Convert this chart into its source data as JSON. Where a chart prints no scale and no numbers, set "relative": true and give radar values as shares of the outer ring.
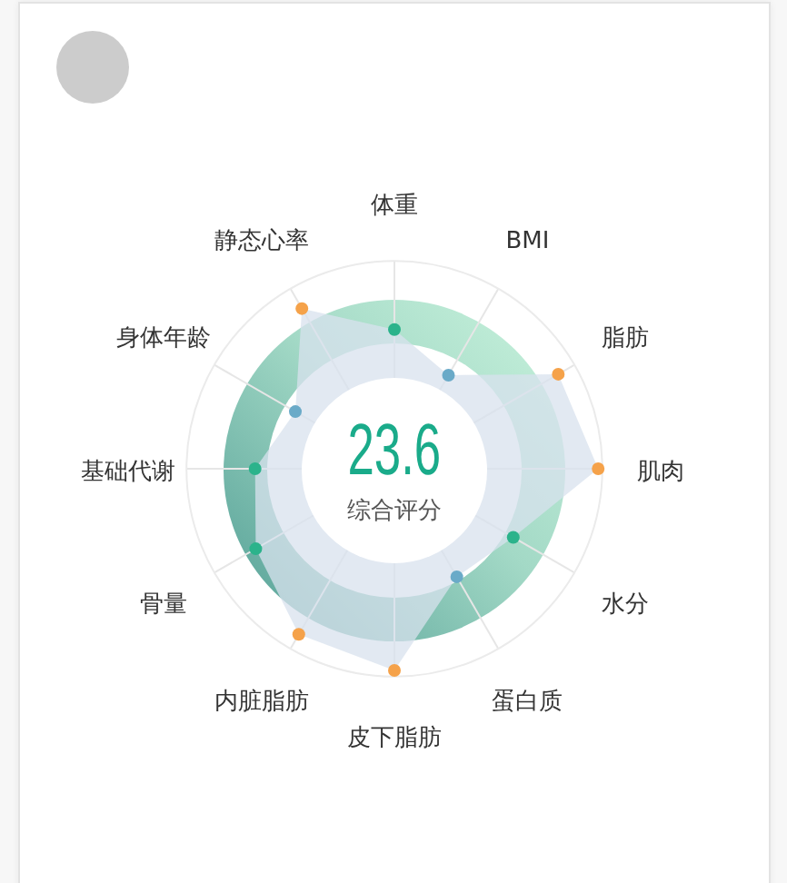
{
  "chart_data": {
    "type": "radar",
    "categories": [
      "体重",
      "BMI",
      "脂肪",
      "肌肉",
      "水分",
      "蛋白质",
      "皮下脂肪",
      "内脏脂肪",
      "骨量",
      "基础代谢",
      "身体年龄",
      "静态心率"
    ],
    "relative": true,
    "series": [
      {
        "color": "#d8e2ed",
        "colors": [
          "#2bb38b",
          "#6aaac8",
          "#f5a24a",
          "#f5a24a",
          "#2bb38b",
          "#6aaac8",
          "#f5a24a",
          "#f5a24a",
          "#2bb38b",
          "#2bb38b",
          "#6aaac8",
          "#f5a24a"
        ],
        "values": [
          0.67,
          0.52,
          0.91,
          0.98,
          0.66,
          0.6,
          0.97,
          0.92,
          0.77,
          0.67,
          0.55,
          0.89
        ]
      }
    ],
    "grid": true,
    "marker": "circle",
    "annotations": [
      "23.6",
      "综合评分"
    ]
  }
}
